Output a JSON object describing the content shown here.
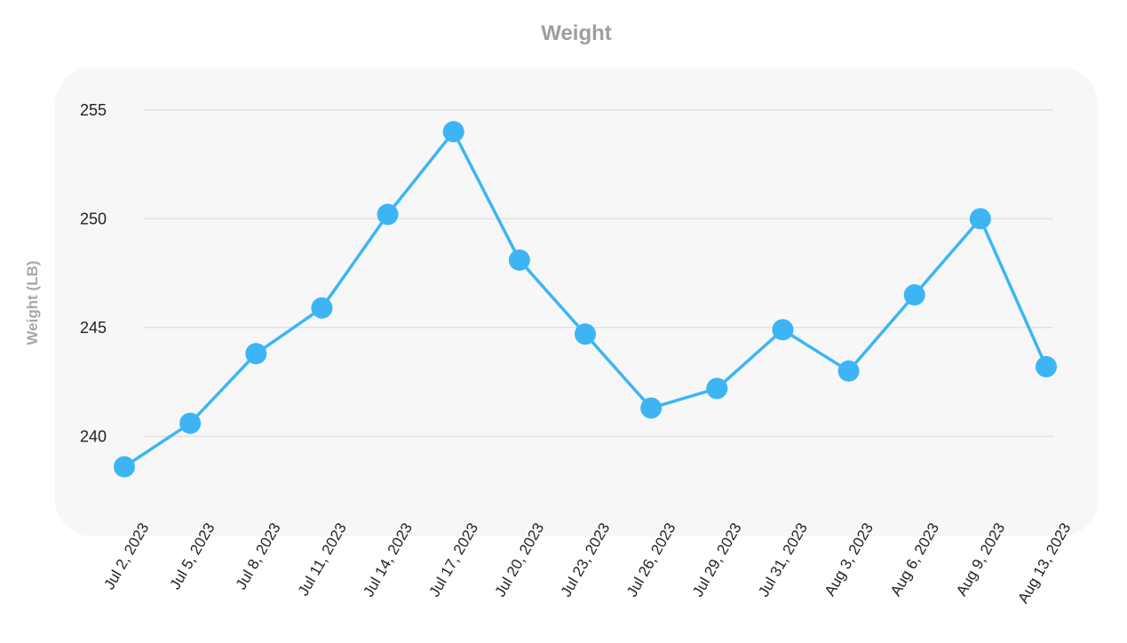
{
  "chart_data": {
    "type": "line",
    "title": "Weight",
    "xlabel": "",
    "ylabel": "Weight (LB)",
    "ylim": [
      236.6,
      256.6
    ],
    "yticks": [
      240,
      245,
      250,
      255
    ],
    "grid": true,
    "categories": [
      "Jul 2, 2023",
      "Jul 5, 2023",
      "Jul 8, 2023",
      "Jul 11, 2023",
      "Jul 14, 2023",
      "Jul 17, 2023",
      "Jul 20, 2023",
      "Jul 23, 2023",
      "Jul 26, 2023",
      "Jul 29, 2023",
      "Jul 31, 2023",
      "Aug 3, 2023",
      "Aug 6, 2023",
      "Aug 9, 2023",
      "Aug 13, 2023"
    ],
    "series": [
      {
        "color": "#3db5f5",
        "values": [
          238.6,
          240.6,
          243.8,
          245.9,
          250.2,
          254.0,
          248.1,
          244.7,
          241.3,
          242.2,
          244.9,
          243.0,
          246.5,
          250.0,
          243.2
        ]
      }
    ],
    "plot_background": "#f7f7f7"
  }
}
